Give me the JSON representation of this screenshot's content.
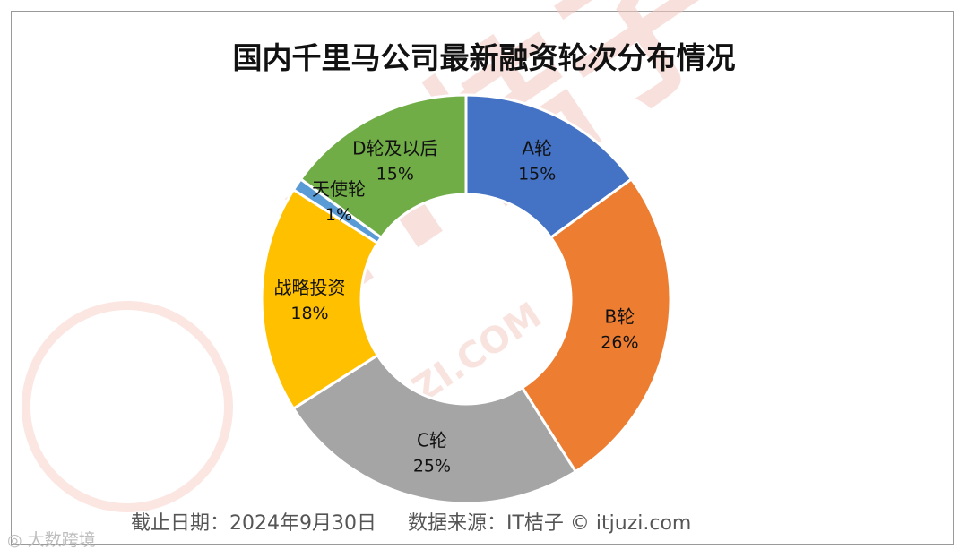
{
  "chart_data": {
    "type": "pie",
    "title": "国内千里马公司最新融资轮次分布情况",
    "categories": [
      "A轮",
      "B轮",
      "C轮",
      "战略投资",
      "天使轮",
      "D轮及以后"
    ],
    "values": [
      15,
      26,
      25,
      18,
      1,
      15
    ],
    "value_labels": [
      "15%",
      "26%",
      "25%",
      "18%",
      "1%",
      "15%"
    ],
    "colors": [
      "#4472C4",
      "#ED7D31",
      "#A5A5A5",
      "#FFC000",
      "#5B9BD5",
      "#70AD47"
    ],
    "donut": true,
    "legend": "none"
  },
  "footer": {
    "date": "截止日期：2024年9月30日",
    "source": "数据来源：IT桔子 © itjuzi.com"
  },
  "watermark": {
    "brand": "IT桔子",
    "site": "ITJUZI.COM",
    "corner": "大数跨境"
  }
}
